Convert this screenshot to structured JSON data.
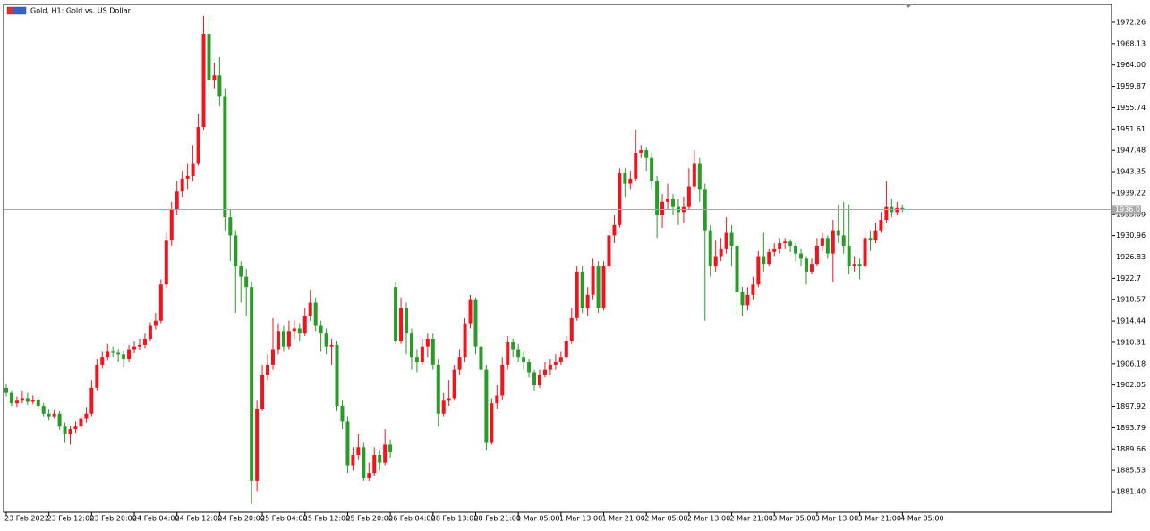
{
  "chart_data": {
    "type": "candlestick",
    "title": "Gold, H1:  Gold vs. US Dollar",
    "categories": [
      "23 Feb 2022",
      null,
      null,
      null,
      null,
      null,
      null,
      null,
      "23 Feb 12:00",
      null,
      null,
      null,
      null,
      null,
      null,
      null,
      "23 Feb 20:00",
      null,
      null,
      null,
      null,
      null,
      null,
      null,
      "24 Feb 04:00",
      null,
      null,
      null,
      null,
      null,
      null,
      null,
      "24 Feb 12:00",
      null,
      null,
      null,
      null,
      null,
      null,
      null,
      "24 Feb 20:00",
      null,
      null,
      null,
      null,
      null,
      null,
      null,
      "25 Feb 04:00",
      null,
      null,
      null,
      null,
      null,
      null,
      null,
      "25 Feb 12:00",
      null,
      null,
      null,
      null,
      null,
      null,
      null,
      "25 Feb 20:00",
      null,
      null,
      null,
      null,
      null,
      null,
      null,
      "26 Feb 04:00",
      null,
      null,
      null,
      null,
      null,
      null,
      null,
      "28 Feb 13:00",
      null,
      null,
      null,
      null,
      null,
      null,
      null,
      "28 Feb 21:00",
      null,
      null,
      null,
      null,
      null,
      null,
      null,
      "1 Mar 05:00",
      null,
      null,
      null,
      null,
      null,
      null,
      null,
      "1 Mar 13:00",
      null,
      null,
      null,
      null,
      null,
      null,
      null,
      "1 Mar 21:00",
      null,
      null,
      null,
      null,
      null,
      null,
      null,
      "2 Mar 05:00",
      null,
      null,
      null,
      null,
      null,
      null,
      null,
      "2 Mar 13:00",
      null,
      null,
      null,
      null,
      null,
      null,
      null,
      "2 Mar 21:00",
      null,
      null,
      null,
      null,
      null,
      null,
      null,
      "3 Mar 05:00",
      null,
      null,
      null,
      null,
      null,
      null,
      null,
      "3 Mar 13:00",
      null,
      null,
      null,
      null,
      null,
      null,
      null,
      "3 Mar 21:00",
      null,
      null,
      null,
      null,
      null,
      null,
      null,
      "4 Mar 05:00"
    ],
    "open": [
      1901.5,
      1900.5,
      1898.5,
      1899,
      1899.5,
      1898.8,
      1899.2,
      1898,
      1896.5,
      1896,
      1896.5,
      1894,
      1892.5,
      1893.5,
      1894,
      1895.5,
      1896.5,
      1901.5,
      1906,
      1907.5,
      1908.5,
      1908.3,
      1908,
      1907,
      1909,
      1909.5,
      1909.8,
      1911,
      1913.5,
      1914.5,
      1921.5,
      1930,
      1936,
      1939.5,
      1942,
      1942.5,
      1945,
      1952,
      1970,
      1961,
      1962,
      1958,
      1934.5,
      1931,
      1925,
      1923,
      1921,
      1883.5,
      1897.5,
      1904,
      1906,
      1909,
      1912.5,
      1909.5,
      1912.5,
      1913,
      1912,
      1915.5,
      1918,
      1913.5,
      1912,
      1909.5,
      1909.8,
      1898,
      1895,
      1886.5,
      1888.5,
      1890,
      1884,
      1885,
      1888.5,
      1887,
      1890.5,
      1921,
      1910.5,
      1917,
      1912,
      1907.5,
      1906.5,
      1909.5,
      1911,
      1906,
      1896.5,
      1899,
      1899.5,
      1905,
      1907.5,
      1914,
      1918.5,
      1909.5,
      1905,
      1891,
      1898.5,
      1900,
      1906,
      1910.3,
      1909,
      1907.5,
      1906.5,
      1904.5,
      1902,
      1904,
      1905,
      1906,
      1906.5,
      1907.5,
      1910.5,
      1915,
      1924,
      1917,
      1919.5,
      1925,
      1917,
      1925,
      1931,
      1933,
      1943,
      1941,
      1942,
      1947,
      1947.5,
      1946,
      1941.5,
      1935,
      1937.5,
      1938,
      1936.5,
      1935.5,
      1936.5,
      1940.5,
      1945,
      1940,
      1932,
      1925,
      1927,
      1928.5,
      1931.5,
      1929,
      1920,
      1917.5,
      1919.5,
      1921.5,
      1927,
      1925.5,
      1927.8,
      1928.5,
      1929.5,
      1929.8,
      1929,
      1927.5,
      1926.5,
      1924,
      1925.5,
      1929,
      1930.5,
      1927.5,
      1932,
      1931,
      1929,
      1925,
      1925.5,
      1925,
      1930.5,
      1930,
      1932,
      1934,
      1936.5,
      1935.5,
      1936.3
    ],
    "high": [
      1902.3,
      1901,
      1899.8,
      1901,
      1900.5,
      1900,
      1899.8,
      1898.6,
      1897.3,
      1897.2,
      1897,
      1894.8,
      1894.2,
      1895,
      1896.2,
      1897.8,
      1903,
      1907,
      1908.5,
      1910,
      1909.5,
      1909,
      1908.6,
      1909.8,
      1910.5,
      1911,
      1912,
      1914.2,
      1916,
      1922.5,
      1931.5,
      1937.5,
      1941.5,
      1943.5,
      1945,
      1948.5,
      1954.5,
      1973.5,
      1973,
      1964.5,
      1965.5,
      1959.5,
      1936,
      1932,
      1926,
      1924.5,
      1922,
      1899,
      1906,
      1908,
      1915,
      1914,
      1913.5,
      1914.5,
      1914.5,
      1914,
      1917,
      1920.5,
      1919,
      1914.5,
      1913,
      1911,
      1910.5,
      1899,
      1896,
      1890,
      1892.5,
      1891,
      1887,
      1890,
      1889.5,
      1893.5,
      1891.5,
      1922,
      1919,
      1918,
      1913,
      1909,
      1911,
      1912,
      1912,
      1907,
      1900.5,
      1903,
      1906,
      1909,
      1915,
      1919.5,
      1919,
      1911,
      1906,
      1899.5,
      1902,
      1907.5,
      1911.5,
      1911,
      1910,
      1908.5,
      1907,
      1905,
      1905,
      1906.5,
      1907,
      1908,
      1908.5,
      1911.5,
      1917,
      1925,
      1925,
      1921,
      1926.5,
      1926,
      1926,
      1932.5,
      1935,
      1944,
      1944,
      1943.5,
      1951.5,
      1948.5,
      1948,
      1947,
      1942.5,
      1939,
      1941,
      1939,
      1938,
      1938.5,
      1944,
      1947.5,
      1946,
      1941,
      1933,
      1930,
      1930.5,
      1934.5,
      1933,
      1930,
      1921,
      1921,
      1923,
      1928,
      1931.5,
      1928.5,
      1929.5,
      1930.5,
      1930.5,
      1930.3,
      1929.5,
      1928.5,
      1927,
      1926.5,
      1930.5,
      1931.5,
      1931,
      1934,
      1937,
      1937.5,
      1937,
      1927,
      1926.5,
      1931.5,
      1932,
      1933.5,
      1935.5,
      1941.5,
      1938,
      1937.5,
      1937
    ],
    "low": [
      1899.8,
      1898,
      1897.8,
      1898.5,
      1898.2,
      1898.3,
      1897.3,
      1896,
      1895.2,
      1895.5,
      1893.4,
      1891,
      1890.5,
      1892.8,
      1893.5,
      1894.8,
      1896,
      1901,
      1905.2,
      1906.8,
      1907.5,
      1906.5,
      1905.5,
      1906.5,
      1908.2,
      1908.8,
      1909.2,
      1910.5,
      1912.8,
      1914,
      1920.8,
      1929,
      1935,
      1938.5,
      1940,
      1941.5,
      1944.5,
      1951.5,
      1957,
      1959.5,
      1956,
      1932,
      1926,
      1916,
      1918,
      1915.5,
      1879,
      1881.5,
      1897,
      1903,
      1905,
      1908,
      1908.5,
      1909,
      1911,
      1910.5,
      1911.5,
      1914.5,
      1912.5,
      1908.5,
      1908,
      1906,
      1897,
      1893.5,
      1885,
      1885.5,
      1887.5,
      1883.5,
      1883.5,
      1884.5,
      1885.5,
      1886.5,
      1888,
      1910,
      1910,
      1908,
      1905,
      1904.5,
      1906,
      1907.5,
      1905,
      1894,
      1896,
      1898,
      1899,
      1904,
      1906.5,
      1913,
      1908,
      1904,
      1889.5,
      1890.5,
      1897.5,
      1899,
      1905,
      1907.5,
      1906.5,
      1905,
      1903.5,
      1901,
      1901.5,
      1903.5,
      1904,
      1905,
      1906,
      1907,
      1910,
      1914.5,
      1916,
      1915.5,
      1918.5,
      1916,
      1916.5,
      1924,
      1929.5,
      1932.5,
      1938.5,
      1940,
      1941.5,
      1946,
      1943.5,
      1940,
      1930.5,
      1932.5,
      1936,
      1935,
      1933,
      1933.5,
      1936,
      1940,
      1937.5,
      1914.5,
      1923,
      1924,
      1926,
      1927.5,
      1925,
      1916,
      1915.5,
      1916.5,
      1918.5,
      1921,
      1924,
      1925,
      1927,
      1927.5,
      1928.5,
      1927.8,
      1926,
      1925,
      1921.5,
      1923.5,
      1925,
      1928,
      1926.5,
      1922,
      1929.5,
      1927.5,
      1923.5,
      1924,
      1922.5,
      1924.5,
      1928,
      1929.5,
      1931.5,
      1933.5,
      1934.5,
      1935,
      1935.5
    ],
    "close": [
      1900.5,
      1898.5,
      1899,
      1899.5,
      1898.8,
      1899.2,
      1898,
      1896.5,
      1896,
      1896.5,
      1894,
      1892.5,
      1893.5,
      1894,
      1895.5,
      1896.5,
      1901.5,
      1906,
      1907.5,
      1908.5,
      1908.3,
      1908,
      1907,
      1909,
      1909.5,
      1909.8,
      1911,
      1913.5,
      1914.5,
      1921.5,
      1930,
      1936,
      1939.5,
      1942,
      1942.5,
      1945,
      1952,
      1970,
      1961,
      1962,
      1958,
      1934.5,
      1931,
      1925,
      1923,
      1921,
      1883.5,
      1897.5,
      1904,
      1906,
      1909,
      1912.5,
      1909.5,
      1912.5,
      1913,
      1912,
      1915.5,
      1918,
      1913.5,
      1912,
      1909.5,
      1909.8,
      1898,
      1895,
      1886.5,
      1888.5,
      1890,
      1884,
      1885,
      1888.5,
      1887,
      1890.5,
      1889,
      1910.5,
      1917,
      1912,
      1907.5,
      1906.5,
      1909.5,
      1911,
      1906,
      1896.5,
      1899,
      1899.5,
      1905,
      1907.5,
      1914,
      1918.5,
      1909.5,
      1905,
      1891,
      1898.5,
      1900,
      1906,
      1910.3,
      1909,
      1907.5,
      1906.5,
      1904.5,
      1902,
      1904,
      1905,
      1906,
      1906.5,
      1907.5,
      1910.5,
      1915,
      1924,
      1917,
      1919.5,
      1925,
      1917,
      1925,
      1931,
      1933,
      1943,
      1941,
      1942,
      1947,
      1947.5,
      1946,
      1941.5,
      1935,
      1937.5,
      1938,
      1936.5,
      1935.5,
      1936.5,
      1940.5,
      1945,
      1940,
      1932,
      1925,
      1927,
      1928.5,
      1931.5,
      1929,
      1920,
      1917.5,
      1919.5,
      1921.5,
      1927,
      1925.5,
      1927.8,
      1928.5,
      1929.5,
      1929.8,
      1929,
      1927.5,
      1926.5,
      1924,
      1925.5,
      1929,
      1930.5,
      1927.5,
      1932,
      1931,
      1929,
      1925,
      1925.5,
      1925,
      1930.5,
      1930,
      1932,
      1934,
      1936.5,
      1935.5,
      1936.3,
      1936.01
    ],
    "up_color": "#f0141e",
    "down_color": "#2a9a2a",
    "last_price": 1936.01,
    "ylim": [
      1877.42,
      1975.72
    ],
    "yticks": [
      1972.26,
      1968.13,
      {
        "value": 1964,
        "label": "1964.00"
      },
      1959.87,
      1955.74,
      1951.61,
      1947.48,
      1943.35,
      1939.22,
      1935.09,
      1930.96,
      1926.83,
      1922.7,
      1918.57,
      1914.44,
      1910.31,
      1906.18,
      1902.05,
      1897.92,
      1893.79,
      1889.66,
      1885.53,
      {
        "value": 1881.4,
        "label": "1881.40"
      }
    ]
  }
}
